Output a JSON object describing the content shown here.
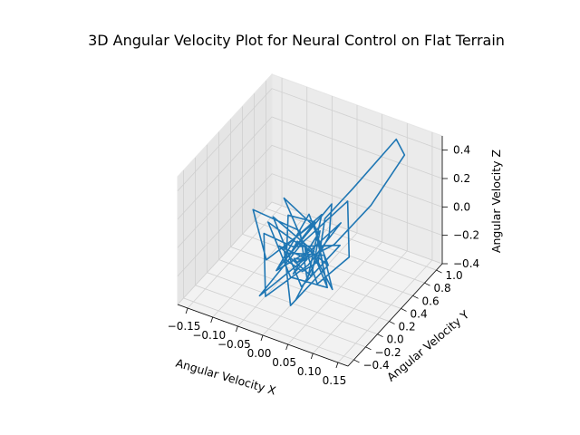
{
  "chart_data": {
    "type": "line",
    "projection": "3d",
    "title": "3D Angular Velocity Plot for Neural Control on Flat Terrain",
    "xlabel": "Angular Velocity X",
    "ylabel": "Angular Velocity Y",
    "zlabel": "Angular Velocity Z",
    "xlim": [
      -0.17,
      0.17
    ],
    "ylim": [
      -0.5,
      1.1
    ],
    "zlim": [
      -0.4,
      0.5
    ],
    "xticks": [
      "−0.15",
      "−0.10",
      "−0.05",
      "0.00",
      "0.05",
      "0.10",
      "0.15"
    ],
    "yticks": [
      "−0.4",
      "−0.2",
      "0.0",
      "0.2",
      "0.4",
      "0.6",
      "0.8",
      "1.0"
    ],
    "zticks": [
      "−0.4",
      "−0.2",
      "0.0",
      "0.2",
      "0.4"
    ],
    "grid": true,
    "line_color": "#1f77b4",
    "series": [
      {
        "x": [
          0.02,
          0.06,
          0.11,
          0.13,
          0.09,
          0.05,
          0.03,
          0.04,
          0.02,
          0.0,
          -0.02,
          0.01,
          -0.03,
          0.02,
          0.05,
          0.03,
          0.06,
          0.01,
          -0.02,
          0.03,
          -0.04,
          0.0,
          0.07,
          0.02,
          -0.06,
          -0.02,
          0.04,
          0.09,
          0.05,
          0.01,
          -0.03,
          0.02,
          -0.05,
          0.03,
          0.06,
          0.0,
          -0.08,
          -0.03,
          0.02,
          0.05,
          0.01,
          -0.02,
          0.04,
          -0.01,
          0.03,
          0.07,
          0.02,
          -0.04,
          -0.09,
          -0.02,
          0.03,
          0.0,
          -0.04,
          0.02,
          0.06,
          0.01,
          -0.03,
          0.05,
          0.02,
          -0.01,
          0.03,
          -0.05,
          0.0,
          0.04,
          0.08,
          0.03,
          0.01
        ],
        "y": [
          0.1,
          0.2,
          0.4,
          0.8,
          1.0,
          0.6,
          0.3,
          0.1,
          0.0,
          -0.1,
          0.1,
          0.3,
          0.0,
          0.5,
          0.2,
          -0.2,
          0.1,
          0.2,
          -0.1,
          0.0,
          0.2,
          0.4,
          0.0,
          -0.2,
          0.1,
          0.3,
          0.6,
          0.2,
          0.0,
          0.1,
          -0.3,
          0.2,
          0.1,
          -0.1,
          0.3,
          0.0,
          0.2,
          -0.2,
          0.1,
          0.4,
          0.0,
          0.2,
          -0.1,
          0.3,
          0.1,
          0.0,
          0.2,
          -0.1,
          0.1,
          0.3,
          0.0,
          0.5,
          0.2,
          -0.2,
          0.1,
          0.0,
          0.2,
          -0.1,
          0.3,
          0.1,
          0.0,
          0.2,
          -0.1,
          0.2,
          0.0,
          0.1,
          0.0
        ],
        "z": [
          -0.1,
          0.0,
          0.25,
          0.45,
          0.42,
          0.2,
          0.1,
          -0.1,
          -0.15,
          -0.05,
          0.15,
          0.05,
          -0.2,
          0.1,
          0.05,
          -0.25,
          -0.1,
          0.15,
          -0.15,
          0.0,
          0.2,
          -0.05,
          -0.2,
          -0.1,
          0.05,
          -0.15,
          0.1,
          -0.05,
          -0.2,
          0.0,
          -0.25,
          -0.1,
          0.1,
          -0.2,
          -0.05,
          0.0,
          -0.1,
          -0.3,
          -0.15,
          0.05,
          -0.1,
          -0.2,
          0.0,
          -0.15,
          -0.05,
          -0.2,
          0.1,
          -0.1,
          0.1,
          -0.05,
          -0.2,
          0.0,
          -0.15,
          -0.3,
          -0.1,
          0.05,
          -0.2,
          -0.1,
          0.0,
          -0.25,
          -0.05,
          -0.15,
          0.0,
          -0.1,
          -0.2,
          -0.05,
          -0.1
        ]
      }
    ]
  }
}
